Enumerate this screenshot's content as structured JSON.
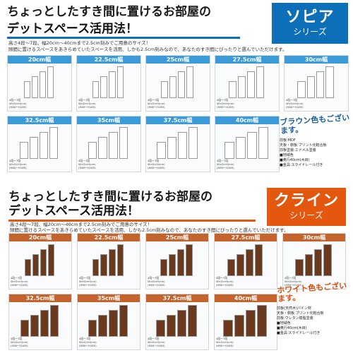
{
  "top": {
    "headline_line1": "ちょっとしたすき間に置けるお部屋の",
    "headline_line2": "デットスペース活用法！",
    "series_name": "ソピア",
    "series_sub": "シリーズ",
    "blurb_line1": "高さ4段〜7段、幅20cm〜40cmまで2.5cm刻みでご用意のサイズ！",
    "blurb_line2": "隙間に置けるスペースをあきらめていたスペースを活用、しかも2.5cm刻みなので、あなたのすき間にぴったりと選んでいただけます。",
    "widths": [
      "20cm幅",
      "22.5cm幅",
      "25cm幅",
      "27.5cm幅",
      "30cm幅",
      "32.5cm幅",
      "35cm幅",
      "37.5cm幅",
      "40cm幅"
    ],
    "spec_lines": [
      "4段〜7段",
      "W×D×H(cm)",
      "(H80〜H165)"
    ],
    "callout": "ブラウン色もございます。",
    "info_lines": [
      "前板:MDF",
      "天板・側板:プリント化粧合板",
      "前板塗装:エナメル塗装",
      "■地域色",
      "■奥行40cm(木目)",
      "■金具:スライドレール付き"
    ],
    "colors": {
      "accent": "#0d6fb8",
      "header": "#3a9bd8",
      "unit": "#ffffff",
      "callout": "#1a5fa0"
    }
  },
  "bottom": {
    "headline_line1": "ちょっとしたすき間に置けるお部屋の",
    "headline_line2": "デットスペース活用法！",
    "series_name": "クライン",
    "series_sub": "シリーズ",
    "blurb_line1": "高さ4段〜7段、幅20cm〜40cmまで2.5cm刻みでご用意のサイズ！",
    "blurb_line2": "隙間に置けるスペースをあきらめていたスペースを活用、しかも2.5cm刻みなので、あなたのすき間にぴったりと選んでいただけます。",
    "widths": [
      "20cm幅",
      "22.5cm幅",
      "25cm幅",
      "27.5cm幅",
      "30cm幅",
      "32.5cm幅",
      "35cm幅",
      "37.5cm幅",
      "40cm幅"
    ],
    "spec_lines": [
      "4段〜7段",
      "W×D×H(cm)",
      "(H80〜H165)"
    ],
    "callout": "ホワイト色もございます。",
    "info_lines": [
      "前板(天然木)パイン材",
      "天板・側板:プリント化粧合板",
      "前板:ウレタン樹脂塗装",
      "■地域色",
      "■奥行40cm(木目)",
      "■金具:スライドレール付き"
    ],
    "colors": {
      "accent": "#e3570e",
      "header": "#c4632c",
      "unit": "#6b3a1e",
      "callout": "#d84d10"
    }
  }
}
